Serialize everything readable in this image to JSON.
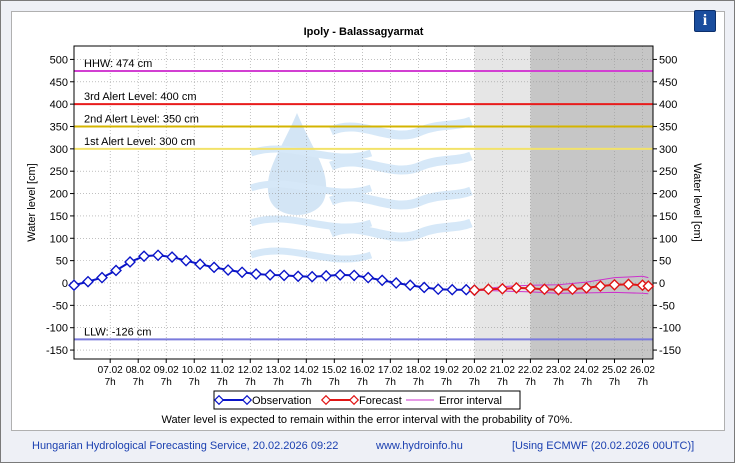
{
  "footer": {
    "service": "Hungarian Hydrological Forecasting Service, 20.02.2026 09:22",
    "website": "www.hydroinfo.hu",
    "model": "[Using ECMWF (20.02.2026  00UTC)]"
  },
  "info_button": {
    "label": "i"
  },
  "chart_data": {
    "type": "line",
    "title": "Ipoly - Balassagyarmat",
    "ylabel_left": "Water level [cm]",
    "ylabel_right": "Water level [cm]",
    "ylim": [
      -170,
      530
    ],
    "yticks": [
      -150,
      -100,
      -50,
      0,
      50,
      100,
      150,
      200,
      250,
      300,
      350,
      400,
      450,
      500
    ],
    "x_start": "2026-02-06 00:00",
    "x_end": "2026-02-26 16:00",
    "x_ticks": [
      {
        "date": "07.02",
        "time": "7h"
      },
      {
        "date": "08.02",
        "time": "7h"
      },
      {
        "date": "09.02",
        "time": "7h"
      },
      {
        "date": "10.02",
        "time": "7h"
      },
      {
        "date": "11.02",
        "time": "7h"
      },
      {
        "date": "12.02",
        "time": "7h"
      },
      {
        "date": "13.02",
        "time": "7h"
      },
      {
        "date": "14.02",
        "time": "7h"
      },
      {
        "date": "15.02",
        "time": "7h"
      },
      {
        "date": "16.02",
        "time": "7h"
      },
      {
        "date": "17.02",
        "time": "7h"
      },
      {
        "date": "18.02",
        "time": "7h"
      },
      {
        "date": "19.02",
        "time": "7h"
      },
      {
        "date": "20.02",
        "time": "7h"
      },
      {
        "date": "21.02",
        "time": "7h"
      },
      {
        "date": "22.02",
        "time": "7h"
      },
      {
        "date": "23.02",
        "time": "7h"
      },
      {
        "date": "24.02",
        "time": "7h"
      },
      {
        "date": "25.02",
        "time": "7h"
      },
      {
        "date": "26.02",
        "time": "7h"
      }
    ],
    "forecast_shading": [
      {
        "from": "2026-02-20 07:00",
        "to": "2026-02-22 07:00",
        "color": "#e6e6e6"
      },
      {
        "from": "2026-02-22 07:00",
        "to": "2026-02-26 16:00",
        "color": "#c6c6c6"
      }
    ],
    "reference_levels": [
      {
        "label": "HHW: 474 cm",
        "value": 474,
        "color": "#d23fd2"
      },
      {
        "label": "3rd Alert Level: 400 cm",
        "value": 400,
        "color": "#e81c1c"
      },
      {
        "label": "2nd Alert Level: 350 cm",
        "value": 350,
        "color": "#d4b400"
      },
      {
        "label": "1st Alert Level: 300 cm",
        "value": 300,
        "color": "#f2e26a"
      },
      {
        "label": "LLW: -126 cm",
        "value": -126,
        "color": "#7b7bdc"
      }
    ],
    "series": [
      {
        "name": "Observation",
        "color": "#0a14c8",
        "x": [
          "2026-02-06 00:00",
          "2026-02-06 12:00",
          "2026-02-07 00:00",
          "2026-02-07 12:00",
          "2026-02-08 00:00",
          "2026-02-08 12:00",
          "2026-02-09 00:00",
          "2026-02-09 12:00",
          "2026-02-10 00:00",
          "2026-02-10 12:00",
          "2026-02-11 00:00",
          "2026-02-11 12:00",
          "2026-02-12 00:00",
          "2026-02-12 12:00",
          "2026-02-13 00:00",
          "2026-02-13 12:00",
          "2026-02-14 00:00",
          "2026-02-14 12:00",
          "2026-02-15 00:00",
          "2026-02-15 12:00",
          "2026-02-16 00:00",
          "2026-02-16 12:00",
          "2026-02-17 00:00",
          "2026-02-17 12:00",
          "2026-02-18 00:00",
          "2026-02-18 12:00",
          "2026-02-19 00:00",
          "2026-02-19 12:00",
          "2026-02-20 00:00",
          "2026-02-20 07:00"
        ],
        "y": [
          -5,
          3,
          12,
          28,
          47,
          60,
          62,
          58,
          50,
          42,
          35,
          29,
          24,
          20,
          18,
          17,
          15,
          14,
          16,
          18,
          17,
          12,
          6,
          0,
          -5,
          -10,
          -14,
          -15,
          -15,
          -16
        ]
      },
      {
        "name": "Forecast",
        "color": "#e01515",
        "x": [
          "2026-02-20 07:00",
          "2026-02-20 19:00",
          "2026-02-21 07:00",
          "2026-02-21 19:00",
          "2026-02-22 07:00",
          "2026-02-22 19:00",
          "2026-02-23 07:00",
          "2026-02-23 19:00",
          "2026-02-24 07:00",
          "2026-02-24 19:00",
          "2026-02-25 07:00",
          "2026-02-25 19:00",
          "2026-02-26 07:00",
          "2026-02-26 12:00"
        ],
        "y": [
          -16,
          -14,
          -13,
          -11,
          -12,
          -14,
          -15,
          -14,
          -11,
          -7,
          -4,
          -3,
          -5,
          -7
        ]
      },
      {
        "name": "Error interval",
        "color": "#cc33cc",
        "x": [
          "2026-02-20 07:00",
          "2026-02-21 07:00",
          "2026-02-22 07:00",
          "2026-02-23 07:00",
          "2026-02-24 07:00",
          "2026-02-25 07:00",
          "2026-02-26 07:00",
          "2026-02-26 12:00"
        ],
        "upper": [
          -16,
          -8,
          -5,
          -4,
          2,
          12,
          15,
          12
        ],
        "lower": [
          -16,
          -18,
          -20,
          -23,
          -22,
          -21,
          -23,
          -24
        ]
      }
    ],
    "legend": {
      "position": "bottom"
    },
    "note": "Water level is expected to remain within the error interval with the probability of 70%."
  }
}
